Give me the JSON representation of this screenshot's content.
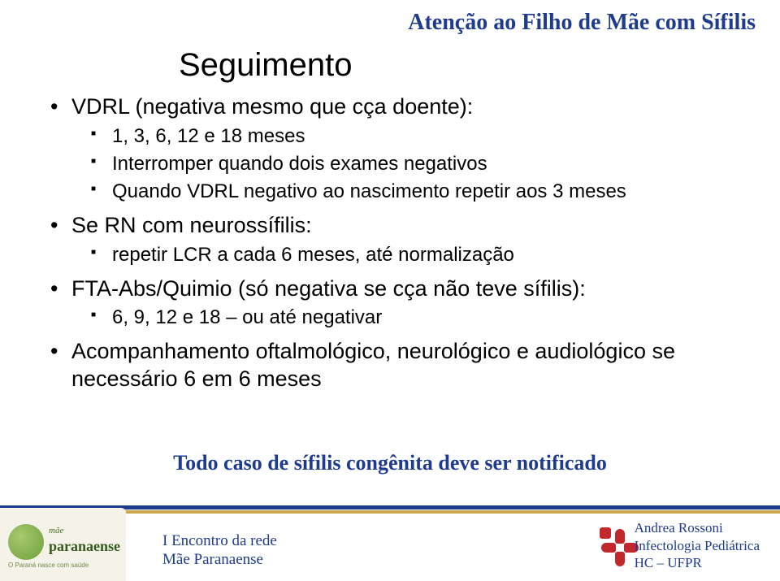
{
  "colors": {
    "accent_navy": "#1f3b8f",
    "accent_gold": "#c9a94d",
    "cross_red": "#c1272d",
    "badge_bg": "#f5f3e9",
    "badge_green_dark": "#355a1f",
    "text_black": "#000000",
    "background": "#ffffff"
  },
  "typography": {
    "header_fontsize": 28,
    "title_fontsize": 40,
    "lvl1_fontsize": 27,
    "lvl2_fontsize": 24,
    "lvl3_fontsize": 20,
    "callout_fontsize": 26,
    "footer_fontsize": 19,
    "footer_right_fontsize": 17
  },
  "header": {
    "title": "Atenção ao Filho de Mãe com Sífilis"
  },
  "slide": {
    "title": "Seguimento"
  },
  "bullets": {
    "b1": "VDRL (negativa mesmo que cça doente):",
    "b1_1": "1, 3, 6, 12 e 18 meses",
    "b1_2": "Interromper quando dois exames negativos",
    "b1_3": "Quando VDRL negativo ao nascimento repetir aos 3 meses",
    "b2": "Se RN com neurossífilis:",
    "b2_1": "repetir LCR a cada 6 meses, até normalização",
    "b3": "FTA-Abs/Quimio (só negativa se cça não teve sífilis):",
    "b3_1": "6, 9, 12 e 18 – ou até negativar",
    "b4": "Acompanhamento oftalmológico, neurológico e audiológico se necessário 6 em 6 meses"
  },
  "callout": "Todo caso de sífilis congênita deve ser notificado",
  "footer": {
    "center_line1": "I Encontro da rede",
    "center_line2": "Mãe Paranaense",
    "right_line1": "Andrea Rossoni",
    "right_line2": "Infectologia Pediátrica",
    "right_line3": "HC – UFPR",
    "badge_small": "O Paraná nasce com saúde",
    "badge_line1": "mãe",
    "badge_line2": "paranaense"
  }
}
